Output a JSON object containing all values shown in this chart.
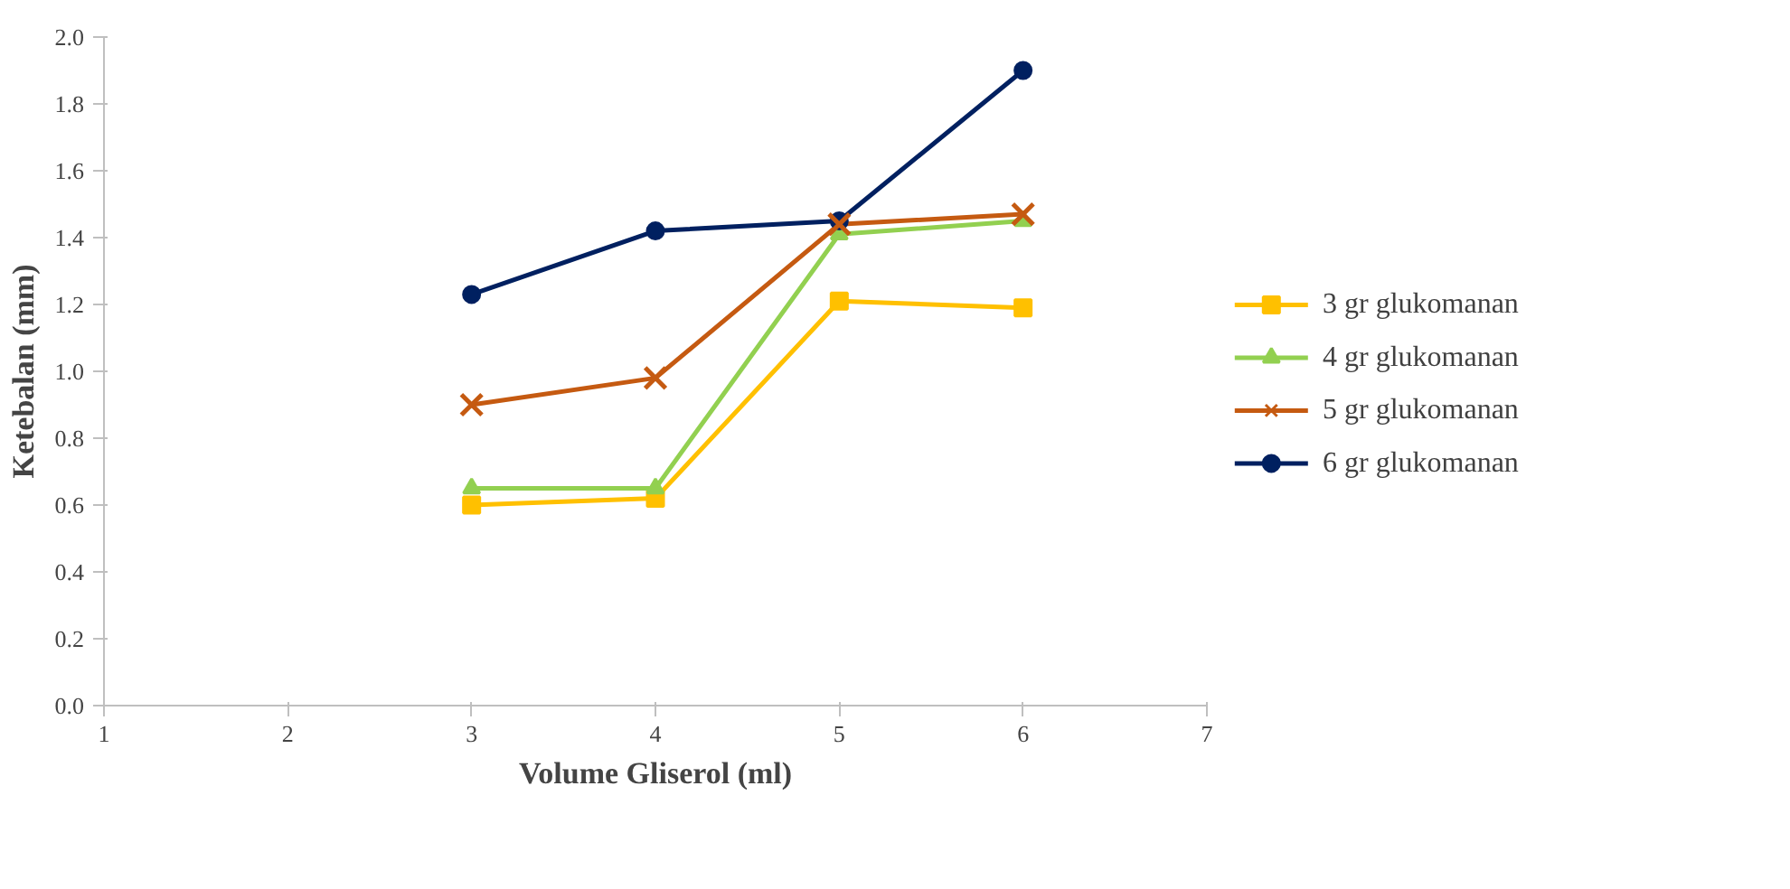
{
  "chart_data": {
    "type": "line",
    "xlabel": "Volume Gliserol (ml)",
    "ylabel": "Ketebalan (mm)",
    "x": [
      3,
      4,
      5,
      6
    ],
    "xlim": [
      1,
      7
    ],
    "xticks": [
      1,
      2,
      3,
      4,
      5,
      6,
      7
    ],
    "ylim": [
      0,
      2
    ],
    "yticks": [
      {
        "value": 0,
        "label": "0.0"
      },
      {
        "value": 0.2,
        "label": "0.2"
      },
      {
        "value": 0.4,
        "label": "0.4"
      },
      {
        "value": 0.6,
        "label": "0.6"
      },
      {
        "value": 0.8,
        "label": "0.8"
      },
      {
        "value": 1.0,
        "label": "1.0"
      },
      {
        "value": 1.2,
        "label": "1.2"
      },
      {
        "value": 1.4,
        "label": "1.4"
      },
      {
        "value": 1.6,
        "label": "1.6"
      },
      {
        "value": 1.8,
        "label": "1.8"
      },
      {
        "value": 2.0,
        "label": "2.0"
      }
    ],
    "grid": false,
    "legend": "right",
    "series": [
      {
        "name": "3 gr glukomanan",
        "color": "#ffc000",
        "marker": "square",
        "values": [
          0.6,
          0.62,
          1.21,
          1.19
        ]
      },
      {
        "name": "4 gr glukomanan",
        "color": "#92d050",
        "marker": "triangle",
        "values": [
          0.65,
          0.65,
          1.41,
          1.45
        ]
      },
      {
        "name": "5 gr glukomanan",
        "color": "#c55a11",
        "marker": "cross",
        "values": [
          0.9,
          0.98,
          1.44,
          1.47
        ]
      },
      {
        "name": "6 gr glukomanan",
        "color": "#002060",
        "marker": "circle",
        "values": [
          1.23,
          1.42,
          1.45,
          1.9
        ]
      }
    ]
  }
}
